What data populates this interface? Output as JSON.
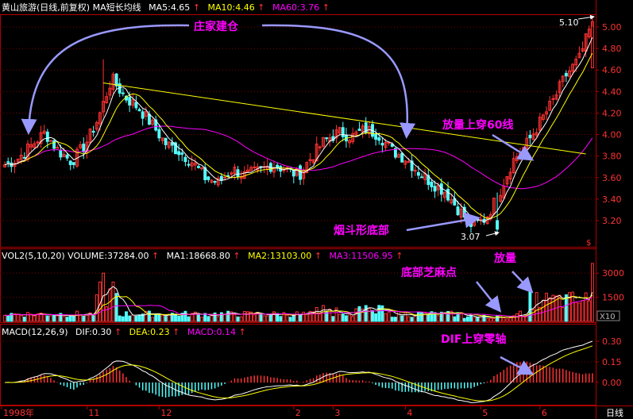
{
  "colors": {
    "bg": "#000000",
    "up": "#ff3232",
    "down": "#54ffff",
    "ma5": "#ffffff",
    "ma10": "#ffff00",
    "ma60": "#ff00ff",
    "trendline": "#ffff00",
    "grid": "#800000",
    "axis": "#b00000",
    "annotation": "#ff00ff",
    "arrow": "#9999ff"
  },
  "header": {
    "main": {
      "title": "黄山旅游(日线,前复权) MA短长均线",
      "ma5": "MA5:4.65",
      "ma10": "MA10:4.46",
      "ma60": "MA60:3.76",
      "up_mark": "↑"
    },
    "vol": {
      "title": "VOL2(5,10,20) VOLUME:37284.00",
      "ma1": "MA1:18668.80",
      "ma2": "MA2:13103.00",
      "ma3": "MA3:11506.95"
    },
    "macd": {
      "title": "MACD(12,26,9)",
      "dif": "DIF:0.30",
      "dea": "DEA:0.23",
      "macd": "MACD:0.14"
    }
  },
  "annotations": {
    "accumulate": "庄家建仓",
    "volume_break": "放量上穿60线",
    "funnel_bottom": "烟斗形底部",
    "bottom_sesame": "底部芝麻点",
    "volume_up": "放量",
    "dif_zero": "DIF上穿零轴",
    "high_label": "5.10",
    "low_label": "3.07",
    "x10": "X10",
    "s_marker": "$"
  },
  "x_axis": {
    "labels": [
      "1998年",
      "11",
      "12",
      "2",
      "3",
      "4",
      "5",
      "6"
    ],
    "period": "日线"
  },
  "chart_data": [
    {
      "type": "candlestick",
      "title": "黄山旅游(日线,前复权) MA短长均线",
      "ylim": [
        3.07,
        5.1
      ],
      "yticks": [
        3.2,
        3.4,
        3.6,
        3.8,
        4.0,
        4.2,
        4.4,
        4.6,
        4.8,
        5.0
      ],
      "ytick_labels": [
        "3.20",
        "3.40",
        "3.60",
        "3.80",
        "4.00",
        "4.20",
        "4.40",
        "4.60",
        "4.80",
        "5.00"
      ],
      "key_points": [
        {
          "label": "5.10",
          "value": 5.1
        },
        {
          "label": "3.07",
          "value": 3.07
        }
      ],
      "close_path": [
        3.72,
        3.78,
        3.9,
        4.02,
        3.85,
        3.75,
        3.9,
        4.15,
        4.52,
        4.35,
        4.25,
        4.1,
        3.92,
        3.85,
        3.75,
        3.6,
        3.55,
        3.68,
        3.62,
        3.66,
        3.72,
        3.68,
        3.62,
        3.8,
        3.95,
        4.02,
        3.98,
        4.05,
        4.0,
        3.85,
        3.78,
        3.65,
        3.55,
        3.47,
        3.3,
        3.15,
        3.22,
        3.45,
        3.75,
        3.9,
        4.1,
        4.3,
        4.55,
        4.7,
        5.05
      ],
      "series": [
        {
          "name": "MA5",
          "value": 4.65
        },
        {
          "name": "MA10",
          "value": 4.46
        },
        {
          "name": "MA60",
          "value": 3.76
        }
      ],
      "trendline": [
        4.48,
        3.82
      ]
    },
    {
      "type": "bar",
      "title": "VOL2(5,10,20)",
      "yticks": [
        1500,
        3000
      ],
      "ytick_labels": [
        "1500",
        "3000"
      ],
      "unit": "X10",
      "series": [
        {
          "name": "VOLUME",
          "value": 37284.0
        },
        {
          "name": "MA1",
          "value": 18668.8
        },
        {
          "name": "MA2",
          "value": 13103.0
        },
        {
          "name": "MA3",
          "value": 11506.95
        }
      ]
    },
    {
      "type": "bar",
      "title": "MACD(12,26,9)",
      "yticks": [
        0.0,
        0.15,
        0.3
      ],
      "ytick_labels": [
        "0.00",
        "0.15",
        "0.30"
      ],
      "series": [
        {
          "name": "DIF",
          "value": 0.3
        },
        {
          "name": "DEA",
          "value": 0.23
        },
        {
          "name": "MACD",
          "value": 0.14
        }
      ]
    }
  ]
}
